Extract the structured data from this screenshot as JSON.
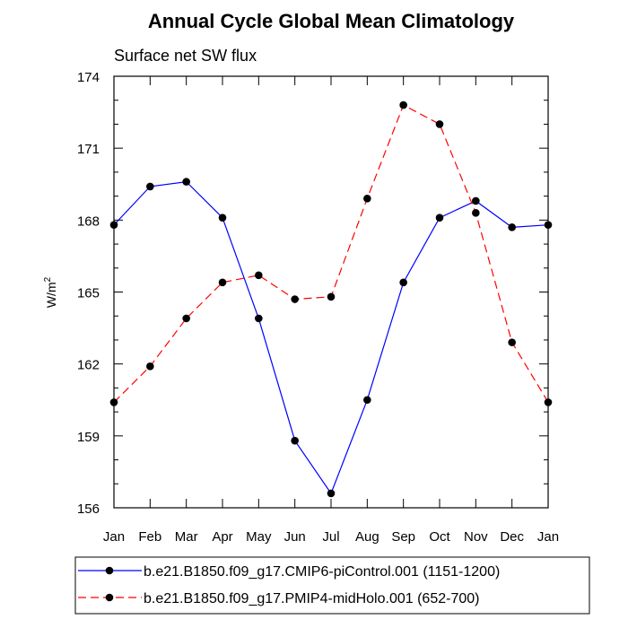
{
  "chart_data": {
    "type": "line",
    "title": "Annual Cycle Global Mean Climatology",
    "subtitle": "Surface net SW flux",
    "ylabel_base": "W/m",
    "ylabel_sup": "2",
    "ylim": [
      156,
      174
    ],
    "yticks": [
      156,
      159,
      162,
      165,
      168,
      171,
      174
    ],
    "categories": [
      "Jan",
      "Feb",
      "Mar",
      "Apr",
      "May",
      "Jun",
      "Jul",
      "Aug",
      "Sep",
      "Oct",
      "Nov",
      "Dec",
      "Jan"
    ],
    "grid": false,
    "legend_position": "bottom",
    "series": [
      {
        "name": "b.e21.B1850.f09_g17.CMIP6-piControl.001 (1151-1200)",
        "color": "#0000ff",
        "dash": "solid",
        "values": [
          167.8,
          169.4,
          169.6,
          168.1,
          163.9,
          158.8,
          156.6,
          160.5,
          165.4,
          168.1,
          168.8,
          167.7,
          167.8
        ]
      },
      {
        "name": "b.e21.B1850.f09_g17.PMIP4-midHolo.001 (652-700)",
        "color": "#ff0000",
        "dash": "dashed",
        "values": [
          160.4,
          161.9,
          163.9,
          165.4,
          165.7,
          164.7,
          164.8,
          168.9,
          172.8,
          172.0,
          168.3,
          162.9,
          160.4
        ]
      }
    ]
  }
}
